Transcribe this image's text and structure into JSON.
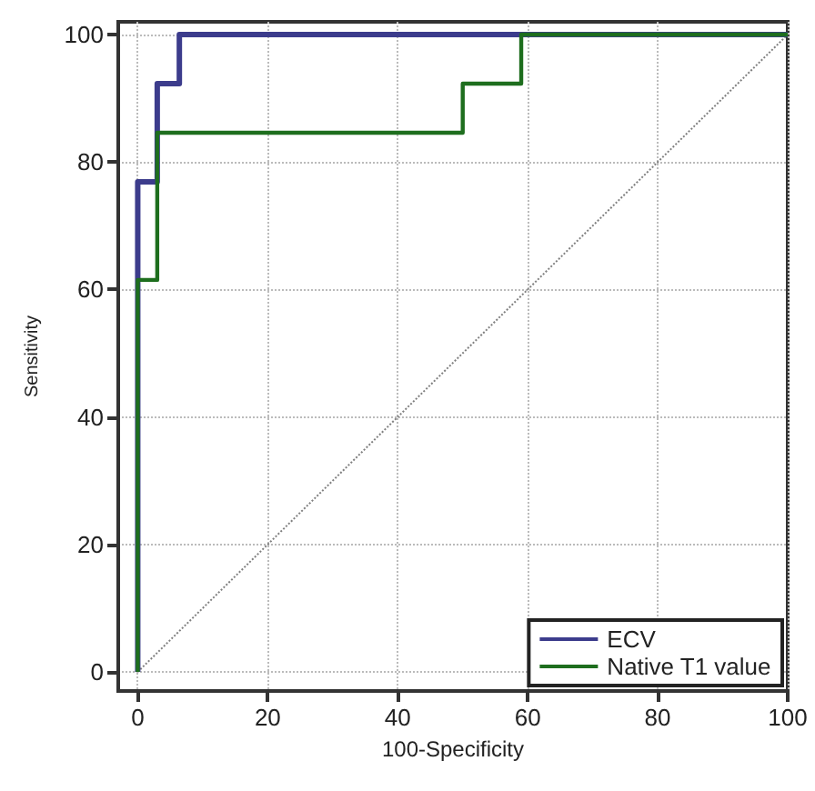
{
  "chart_data": {
    "type": "step",
    "xlabel": "100-Specificity",
    "ylabel": "Sensitivity",
    "xlim": [
      -3,
      100
    ],
    "ylim": [
      -3,
      102
    ],
    "xticks": [
      0,
      20,
      40,
      60,
      80,
      100
    ],
    "yticks": [
      0,
      20,
      40,
      60,
      80,
      100
    ],
    "grid": true,
    "legend": "bottom right",
    "series": [
      {
        "name": "ECV",
        "color": "#3c3c8c",
        "x": [
          0,
          0,
          3,
          6.4,
          100
        ],
        "values": [
          0,
          76.9,
          92.3,
          100,
          100
        ]
      },
      {
        "name": "Native T1 value",
        "color": "#1e6e1e",
        "x": [
          0,
          0,
          3,
          50,
          59,
          100
        ],
        "values": [
          0,
          61.5,
          84.6,
          92.3,
          100,
          100
        ]
      },
      {
        "type": "line",
        "color": "#808080",
        "line_style": "dotted",
        "x": [
          0,
          100
        ],
        "values": [
          0,
          100
        ]
      }
    ]
  }
}
